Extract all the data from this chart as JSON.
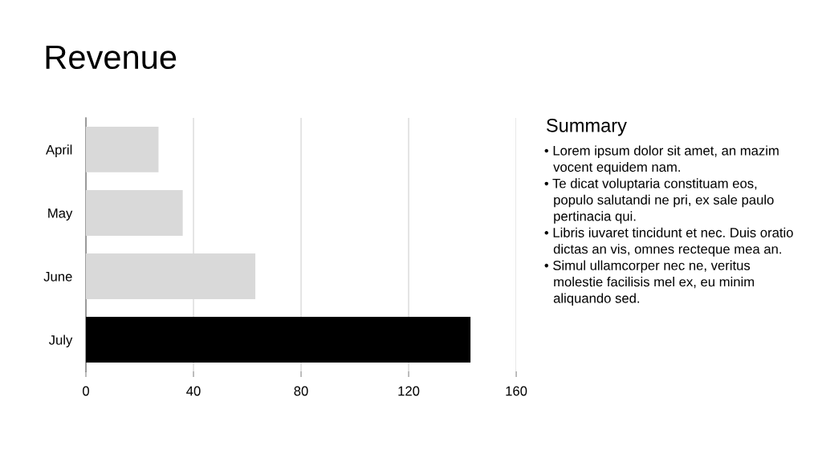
{
  "chart_data": [
    {
      "type": "bar",
      "title": "Revenue",
      "orientation": "horizontal",
      "categories": [
        "April",
        "May",
        "June",
        "July"
      ],
      "values": [
        27,
        36,
        63,
        143
      ],
      "colors": [
        "#d9d9d9",
        "#d9d9d9",
        "#d9d9d9",
        "#000000"
      ],
      "xlim": [
        0,
        160
      ],
      "xticks": [
        0,
        40,
        80,
        120,
        160
      ],
      "grid": "x"
    },
    {
      "type": "other",
      "title": "Summary",
      "annotations": [
        "• Lorem ipsum dolor sit amet, an mazim\nvocent equidem nam.",
        "• Te dicat voluptaria constituam eos,\npopulo salutandi ne pri, ex sale paulo\npertinacia qui.",
        "• Libris iuvaret tincidunt et nec. Duis oratio\ndictas an vis, omnes recteque mea an.",
        "• Simul ullamcorper nec ne, veritus\nmolestie facilisis mel ex, eu minim\naliquando sed."
      ]
    }
  ]
}
